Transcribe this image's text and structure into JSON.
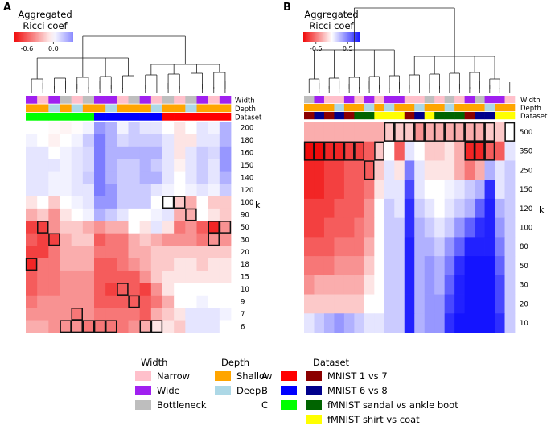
{
  "panels": [
    {
      "letter": "A",
      "colorbar": {
        "title_line1": "Aggregated",
        "title_line2": "Ricci coef",
        "ticks": [
          "-0.6",
          "0.0"
        ],
        "range": [
          -0.9,
          0.45
        ],
        "tick_values": [
          -0.6,
          0.0
        ]
      },
      "annotation_labels": [
        "Width",
        "Depth",
        "Dataset"
      ],
      "k_label": "k"
    },
    {
      "letter": "B",
      "colorbar": {
        "title_line1": "Aggregated",
        "title_line2": "Ricci coef",
        "ticks": [
          "-0.5",
          "0.5"
        ],
        "range": [
          -0.9,
          0.9
        ],
        "tick_values": [
          -0.5,
          0.5
        ]
      },
      "annotation_labels": [
        "Width",
        "Depth",
        "Dataset"
      ],
      "k_label": "k"
    }
  ],
  "legend": {
    "width": {
      "title": "Width",
      "items": [
        {
          "label": "Narrow",
          "color": "#ffc0cb"
        },
        {
          "label": "Wide",
          "color": "#a020f0"
        },
        {
          "label": "Bottleneck",
          "color": "#bebebe"
        }
      ]
    },
    "depth": {
      "title": "Depth",
      "items": [
        {
          "label": "Shallow",
          "color": "#ffa500"
        },
        {
          "label": "Deep",
          "color": "#add8e6"
        }
      ]
    },
    "dataset_a": {
      "title": "Dataset",
      "items": [
        {
          "label": "A",
          "color": "#ff0000"
        },
        {
          "label": "B",
          "color": "#0000ff"
        },
        {
          "label": "C",
          "color": "#00ff00"
        }
      ]
    },
    "dataset_b": {
      "items": [
        {
          "label": "MNIST 1 vs 7",
          "color": "#8b0000"
        },
        {
          "label": "MNIST 6 vs 8",
          "color": "#00008b"
        },
        {
          "label": "fMNIST sandal vs ankle boot",
          "color": "#006400"
        },
        {
          "label": "fMNIST shirt vs coat",
          "color": "#ffff00"
        }
      ]
    }
  },
  "chart_data": [
    {
      "type": "heatmap",
      "panel": "A",
      "title": "",
      "colorbar_title": "Aggregated Ricci coef",
      "y_label": "k",
      "rows": [
        "200",
        "180",
        "160",
        "150",
        "140",
        "120",
        "100",
        "90",
        "50",
        "30",
        "20",
        "18",
        "15",
        "10",
        "9",
        "7",
        "6"
      ],
      "n_columns": 18,
      "annotations": {
        "width": [
          "wide",
          "narrow",
          "wide",
          "bottleneck",
          "narrow",
          "bottleneck",
          "wide",
          "wide",
          "narrow",
          "bottleneck",
          "wide",
          "narrow",
          "bottleneck",
          "narrow",
          "bottleneck",
          "wide",
          "narrow",
          "wide"
        ],
        "depth": [
          "shallow",
          "shallow",
          "deep",
          "shallow",
          "deep",
          "shallow",
          "shallow",
          "deep",
          "shallow",
          "shallow",
          "shallow",
          "deep",
          "shallow",
          "shallow",
          "deep",
          "shallow",
          "shallow",
          "shallow"
        ],
        "dataset": [
          "C",
          "C",
          "C",
          "C",
          "C",
          "C",
          "B",
          "B",
          "B",
          "B",
          "B",
          "B",
          "A",
          "A",
          "A",
          "A",
          "A",
          "A"
        ]
      },
      "values": [
        [
          0.0,
          0.0,
          -0.02,
          -0.04,
          -0.01,
          0.05,
          0.4,
          0.3,
          0.05,
          0.2,
          0.1,
          0.1,
          0.0,
          -0.1,
          0.0,
          0.1,
          0.05,
          0.3
        ],
        [
          0.05,
          0.0,
          -0.05,
          0.0,
          0.05,
          0.2,
          0.5,
          0.3,
          0.15,
          0.2,
          0.2,
          0.2,
          0.1,
          -0.1,
          -0.1,
          0.1,
          0.1,
          0.3
        ],
        [
          0.1,
          0.1,
          0.0,
          0.05,
          0.1,
          0.15,
          0.5,
          0.3,
          0.3,
          0.3,
          0.3,
          0.3,
          0.1,
          -0.1,
          0.1,
          0.2,
          0.15,
          0.4
        ],
        [
          0.1,
          0.1,
          0.1,
          0.05,
          0.1,
          0.15,
          0.5,
          0.3,
          0.2,
          0.2,
          0.3,
          0.2,
          0.1,
          -0.05,
          0.1,
          0.2,
          0.1,
          0.4
        ],
        [
          0.1,
          0.1,
          0.05,
          0.05,
          0.1,
          0.2,
          0.5,
          0.3,
          0.2,
          0.2,
          0.3,
          0.3,
          0.1,
          0.0,
          0.1,
          0.2,
          0.1,
          0.3
        ],
        [
          0.1,
          0.1,
          0.05,
          0.05,
          0.1,
          0.1,
          0.5,
          0.4,
          0.2,
          0.2,
          0.2,
          0.1,
          0.05,
          0.0,
          0.05,
          0.1,
          0.05,
          0.2
        ],
        [
          -0.1,
          0.0,
          -0.2,
          0.0,
          0.05,
          0.1,
          0.4,
          0.4,
          0.2,
          0.2,
          0.2,
          0.0,
          0.0,
          -0.2,
          -0.3,
          0.0,
          -0.2,
          -0.2
        ],
        [
          -0.3,
          -0.2,
          -0.4,
          -0.1,
          0.0,
          0.05,
          0.3,
          0.2,
          0.1,
          0.0,
          0.0,
          0.05,
          0.1,
          -0.3,
          -0.3,
          0.0,
          -0.1,
          -0.2
        ],
        [
          -0.7,
          -0.7,
          -0.4,
          -0.2,
          -0.2,
          -0.3,
          -0.4,
          -0.3,
          -0.3,
          0.0,
          -0.1,
          0.1,
          -0.1,
          -0.5,
          -0.4,
          -0.6,
          -0.8,
          -0.4
        ],
        [
          -0.6,
          -0.7,
          -0.7,
          -0.3,
          -0.2,
          -0.2,
          -0.6,
          -0.5,
          -0.5,
          -0.3,
          -0.2,
          -0.3,
          -0.4,
          -0.4,
          -0.4,
          -0.5,
          -0.4,
          -0.4
        ],
        [
          -0.7,
          -0.7,
          -0.5,
          -0.3,
          -0.3,
          -0.3,
          -0.5,
          -0.5,
          -0.5,
          -0.3,
          -0.3,
          -0.2,
          -0.2,
          -0.2,
          -0.2,
          -0.2,
          -0.2,
          -0.2
        ],
        [
          -0.8,
          -0.5,
          -0.5,
          -0.3,
          -0.3,
          -0.3,
          -0.6,
          -0.6,
          -0.5,
          -0.4,
          -0.3,
          -0.2,
          -0.2,
          -0.1,
          -0.1,
          -0.2,
          -0.1,
          -0.1
        ],
        [
          -0.6,
          -0.5,
          -0.5,
          -0.4,
          -0.4,
          -0.4,
          -0.6,
          -0.6,
          -0.6,
          -0.6,
          -0.4,
          -0.2,
          -0.1,
          -0.1,
          -0.1,
          -0.1,
          -0.1,
          -0.1
        ],
        [
          -0.6,
          -0.5,
          -0.5,
          -0.4,
          -0.4,
          -0.4,
          -0.6,
          -0.7,
          -0.6,
          -0.6,
          -0.7,
          -0.4,
          -0.1,
          0.0,
          0.0,
          0.0,
          0.0,
          0.0
        ],
        [
          -0.5,
          -0.4,
          -0.4,
          -0.4,
          -0.4,
          -0.4,
          -0.6,
          -0.6,
          -0.6,
          -0.6,
          -0.6,
          -0.5,
          -0.3,
          0.0,
          0.0,
          0.05,
          0.0,
          0.0
        ],
        [
          -0.4,
          -0.4,
          -0.4,
          -0.4,
          -0.5,
          -0.4,
          -0.5,
          -0.5,
          -0.5,
          -0.5,
          -0.6,
          -0.3,
          -0.2,
          -0.1,
          0.1,
          0.1,
          0.1,
          0.05
        ],
        [
          -0.3,
          -0.3,
          -0.4,
          -0.4,
          -0.4,
          -0.5,
          -0.5,
          -0.5,
          -0.5,
          -0.4,
          -0.3,
          -0.1,
          -0.1,
          -0.2,
          0.1,
          0.1,
          0.1,
          0.0
        ]
      ],
      "highlighted": [
        [
          6,
          12
        ],
        [
          6,
          13
        ],
        [
          7,
          14
        ],
        [
          8,
          1
        ],
        [
          8,
          16
        ],
        [
          8,
          17
        ],
        [
          9,
          2
        ],
        [
          9,
          16
        ],
        [
          11,
          0
        ],
        [
          13,
          8
        ],
        [
          14,
          9
        ],
        [
          15,
          4
        ],
        [
          16,
          3
        ],
        [
          16,
          4
        ],
        [
          16,
          5
        ],
        [
          16,
          6
        ],
        [
          16,
          7
        ],
        [
          16,
          10
        ],
        [
          16,
          11
        ]
      ]
    },
    {
      "type": "heatmap",
      "panel": "B",
      "title": "",
      "colorbar_title": "Aggregated Ricci coef",
      "y_label": "k",
      "rows": [
        "500",
        "350",
        "250",
        "150",
        "120",
        "100",
        "80",
        "50",
        "30",
        "20",
        "10"
      ],
      "n_columns": 21,
      "annotations": {
        "width": [
          "bottleneck",
          "wide",
          "narrow",
          "narrow",
          "wide",
          "narrow",
          "wide",
          "narrow",
          "wide",
          "wide",
          "narrow",
          "narrow",
          "bottleneck",
          "narrow",
          "bottleneck",
          "narrow",
          "wide",
          "bottleneck",
          "wide",
          "wide",
          "narrow"
        ],
        "depth": [
          "shallow",
          "shallow",
          "shallow",
          "deep",
          "shallow",
          "shallow",
          "deep",
          "shallow",
          "deep",
          "shallow",
          "shallow",
          "deep",
          "shallow",
          "shallow",
          "deep",
          "shallow",
          "shallow",
          "shallow",
          "deep",
          "shallow",
          "shallow"
        ],
        "dataset": [
          "mnist17",
          "mnist68",
          "mnist17",
          "mnist68",
          "mnist17",
          "fmnist_sandal",
          "fmnist_sandal",
          "fmnist_shirt",
          "fmnist_shirt",
          "fmnist_shirt",
          "mnist17",
          "mnist68",
          "fmnist_shirt",
          "fmnist_sandal",
          "fmnist_sandal",
          "fmnist_sandal",
          "mnist17",
          "mnist68",
          "mnist68",
          "fmnist_shirt",
          "fmnist_shirt"
        ]
      },
      "values": [
        [
          -0.3,
          -0.3,
          -0.3,
          -0.3,
          -0.3,
          -0.3,
          -0.3,
          -0.3,
          -0.2,
          -0.2,
          -0.2,
          -0.4,
          -0.3,
          -0.3,
          -0.3,
          -0.3,
          -0.3,
          -0.3,
          -0.2,
          -0.2,
          0.0
        ],
        [
          -0.9,
          -0.9,
          -0.8,
          -0.8,
          -0.7,
          -0.7,
          -0.6,
          -0.2,
          0.0,
          -0.6,
          0.1,
          0.0,
          -0.2,
          -0.2,
          -0.1,
          -0.3,
          -0.8,
          -0.8,
          -0.6,
          -0.6,
          0.1
        ],
        [
          -0.8,
          -0.8,
          -0.7,
          -0.7,
          -0.6,
          -0.6,
          -0.6,
          -0.2,
          0.1,
          -0.1,
          0.5,
          0.1,
          -0.1,
          -0.1,
          -0.1,
          -0.3,
          -0.5,
          -0.3,
          0.3,
          0.1,
          0.2
        ],
        [
          -0.8,
          -0.8,
          -0.7,
          -0.7,
          -0.6,
          -0.6,
          -0.5,
          -0.1,
          0.1,
          0.1,
          0.7,
          0.1,
          0.0,
          0.0,
          0.05,
          0.1,
          0.2,
          0.3,
          0.8,
          0.1,
          0.2
        ],
        [
          -0.7,
          -0.7,
          -0.7,
          -0.6,
          -0.6,
          -0.6,
          -0.4,
          0.0,
          0.2,
          0.1,
          0.8,
          0.2,
          0.1,
          0.0,
          0.1,
          0.2,
          0.3,
          0.6,
          0.85,
          0.3,
          0.2
        ],
        [
          -0.7,
          -0.7,
          -0.6,
          -0.6,
          -0.6,
          -0.5,
          -0.4,
          0.0,
          0.2,
          0.2,
          0.8,
          0.3,
          0.2,
          0.1,
          0.2,
          0.4,
          0.6,
          0.8,
          0.85,
          0.4,
          0.2
        ],
        [
          -0.6,
          -0.6,
          -0.6,
          -0.5,
          -0.5,
          -0.5,
          -0.3,
          0.0,
          0.2,
          0.2,
          0.85,
          0.3,
          0.3,
          0.2,
          0.4,
          0.6,
          0.85,
          0.85,
          0.85,
          0.5,
          0.2
        ],
        [
          -0.5,
          -0.5,
          -0.5,
          -0.4,
          -0.4,
          -0.4,
          -0.2,
          0.0,
          0.2,
          0.2,
          0.85,
          0.3,
          0.4,
          0.3,
          0.5,
          0.8,
          0.9,
          0.9,
          0.9,
          0.6,
          0.2
        ],
        [
          -0.4,
          -0.3,
          -0.3,
          -0.3,
          -0.3,
          -0.3,
          -0.1,
          0.0,
          0.2,
          0.2,
          0.85,
          0.3,
          0.4,
          0.3,
          0.6,
          0.85,
          0.9,
          0.9,
          0.9,
          0.7,
          0.2
        ],
        [
          -0.2,
          -0.2,
          -0.2,
          -0.2,
          -0.2,
          -0.2,
          0.0,
          0.0,
          0.2,
          0.2,
          0.85,
          0.3,
          0.4,
          0.4,
          0.7,
          0.85,
          0.9,
          0.9,
          0.9,
          0.7,
          0.2
        ],
        [
          0.1,
          0.2,
          0.3,
          0.4,
          0.3,
          0.2,
          0.1,
          0.1,
          0.2,
          0.2,
          0.85,
          0.3,
          0.4,
          0.4,
          0.8,
          0.9,
          0.9,
          0.9,
          0.9,
          0.8,
          0.2
        ]
      ],
      "highlighted": [
        [
          0,
          8
        ],
        [
          0,
          9
        ],
        [
          0,
          10
        ],
        [
          0,
          11
        ],
        [
          0,
          12
        ],
        [
          0,
          13
        ],
        [
          0,
          14
        ],
        [
          0,
          15
        ],
        [
          0,
          16
        ],
        [
          0,
          17
        ],
        [
          0,
          18
        ],
        [
          0,
          20
        ],
        [
          1,
          0
        ],
        [
          1,
          1
        ],
        [
          1,
          2
        ],
        [
          1,
          3
        ],
        [
          1,
          4
        ],
        [
          1,
          5
        ],
        [
          1,
          7
        ],
        [
          1,
          16
        ],
        [
          1,
          17
        ],
        [
          1,
          18
        ],
        [
          2,
          6
        ]
      ]
    }
  ]
}
